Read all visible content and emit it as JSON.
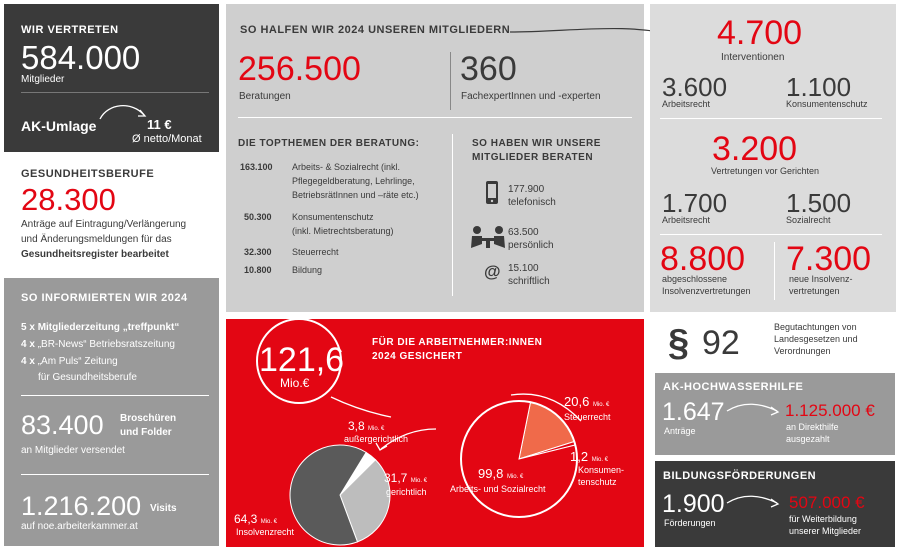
{
  "left": {
    "vertreten": {
      "heading": "WIR VERTRETEN",
      "number": "584.000",
      "label": "Mitglieder"
    },
    "umlage": {
      "label": "AK-Umlage",
      "value": "11 €",
      "sub": "Ø netto/Monat"
    },
    "gesundheit": {
      "heading": "GESUNDHEITSBERUFE",
      "number": "28.300",
      "line1": "Anträge auf Eintragung/Verlängerung",
      "line2": "und Änderungsmeldungen für das",
      "line3": "Gesundheitsregister bearbeitet"
    },
    "informieren": {
      "heading": "SO INFORMIERTEN WIR 2024",
      "items": [
        {
          "count": "5 x",
          "text": "Mitgliederzeitung „treffpunkt“"
        },
        {
          "count": "4 x",
          "text": "„BR-News“ Betriebsratszeitung"
        },
        {
          "count": "4 x",
          "text": "„Am Puls“ Zeitung"
        }
      ],
      "item3_line2": "für Gesundheitsberufe",
      "broschueren": {
        "number": "83.400",
        "label1": "Broschüren",
        "label2": "und Folder",
        "sub": "an Mitglieder versendet"
      },
      "visits": {
        "number": "1.216.200",
        "label": "Visits",
        "sub": "auf noe.arbeiterkammer.at"
      }
    }
  },
  "center": {
    "heading": "SO HALFEN WIR 2024 UNSEREN MITGLIEDERN",
    "beratungen": {
      "number": "256.500",
      "label": "Beratungen"
    },
    "experten": {
      "number": "360",
      "label": "FachexpertInnen und -experten"
    },
    "topthemen": {
      "heading": "DIE TOPTHEMEN DER BERATUNG:",
      "rows": [
        {
          "value": "163.100",
          "lines": [
            "Arbeits- & Sozialrecht (inkl.",
            "Pflegegeldberatung, Lehrlinge,",
            "BetriebsrätInnen und –räte etc.)"
          ]
        },
        {
          "value": "50.300",
          "lines": [
            "Konsumentenschutz",
            "(inkl. Mietrechtsberatung)"
          ]
        },
        {
          "value": "32.300",
          "lines": [
            "Steuerrecht"
          ]
        },
        {
          "value": "10.800",
          "lines": [
            "Bildung"
          ]
        }
      ]
    },
    "beraten": {
      "heading1": "SO HABEN WIR UNSERE",
      "heading2": "MITGLIEDER BERATEN",
      "items": [
        {
          "value": "177.900",
          "label": "telefonisch",
          "icon": "phone-icon"
        },
        {
          "value": "63.500",
          "label": "persönlich",
          "icon": "meeting-icon"
        },
        {
          "value": "15.100",
          "label": "schriftlich",
          "icon": "at-icon"
        }
      ]
    }
  },
  "gesichert": {
    "heading1": "FÜR DIE ARBEITNEHMER:INNEN",
    "heading2": "2024 GESICHERT",
    "total": "121,6",
    "total_unit": "Mio.€",
    "small_unit": "Mio. €",
    "steuer": {
      "value": "20,6",
      "label": "Steuerrecht"
    },
    "konsumenten": {
      "value": "1,2",
      "label1": "Konsumen-",
      "label2": "tenschutz"
    },
    "arbeits": {
      "value": "99,8",
      "label": "Arbeits- und Sozialrecht"
    },
    "aussergericht": {
      "value": "3,8",
      "label": "außergerichtlich"
    },
    "gericht": {
      "value": "31,7",
      "label": "gerichtlich"
    },
    "insolvenz": {
      "value": "64,3",
      "label": "Insolvenzrecht"
    }
  },
  "right": {
    "interventionen": {
      "number": "4.700",
      "label": "Interventionen"
    },
    "arbeitsrecht1": {
      "number": "3.600",
      "label": "Arbeitsrecht"
    },
    "konsumentenschutz": {
      "number": "1.100",
      "label": "Konsumentenschutz"
    },
    "gerichte": {
      "number": "3.200",
      "label": "Vertretungen vor Gerichten"
    },
    "arbeitsrecht2": {
      "number": "1.700",
      "label": "Arbeitsrecht"
    },
    "sozialrecht": {
      "number": "1.500",
      "label": "Sozialrecht"
    },
    "insolvenz_done": {
      "number": "8.800",
      "line1": "abgeschlossene",
      "line2": "Insolvenzvertretungen"
    },
    "insolvenz_new": {
      "number": "7.300",
      "line1": "neue Insolvenz-",
      "line2": "vertretungen"
    },
    "paragraph": {
      "symbol": "§",
      "number": "92",
      "line1": "Begutachtungen von",
      "line2": "Landesgesetzen und",
      "line3": "Verordnungen"
    },
    "hochwasser": {
      "heading": "AK-HOCHWASSERHILFE",
      "number": "1.647",
      "label": "Anträge",
      "amount": "1.125.000 €",
      "amount_line1": "an Direkthilfe",
      "amount_line2": "ausgezahlt"
    },
    "bildung": {
      "heading": "BILDUNGSFÖRDERUNGEN",
      "number": "1.900",
      "label": "Förderungen",
      "amount": "507.000 €",
      "amount_line1": "für Weiterbildung",
      "amount_line2": "unserer Mitglieder"
    }
  },
  "colors": {
    "red": "#e30613",
    "dark": "#3a3a3a",
    "grey": "#cfcfcf",
    "midgrey": "#9a9a9a"
  }
}
